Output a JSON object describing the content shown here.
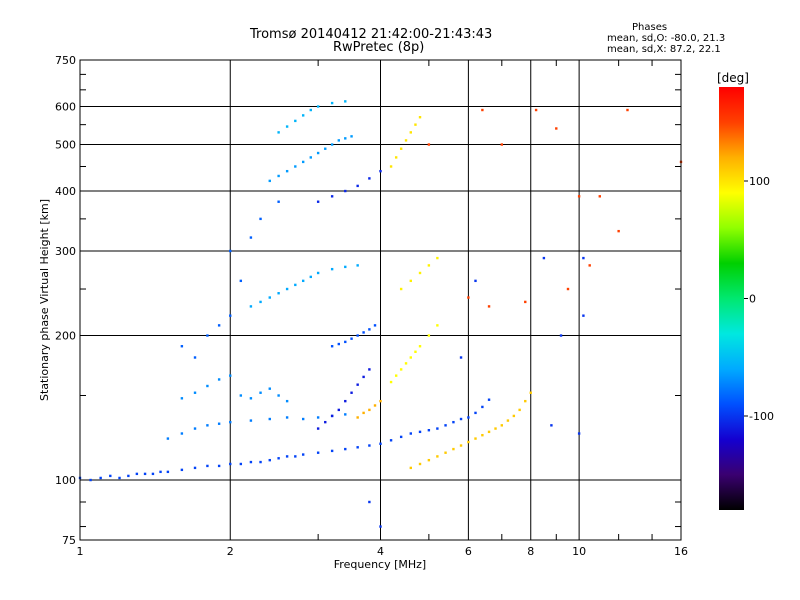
{
  "chart_data": {
    "type": "scatter",
    "title": "Tromsø 20140412 21:42:00-21:43:43",
    "subtitle": "RwPretec (8p)",
    "xlabel": "Frequency [MHz]",
    "ylabel": "Stationary phase Virtual Height [km]",
    "x_scale": "log",
    "y_scale": "log",
    "xlim": [
      1,
      16
    ],
    "ylim": [
      75,
      750
    ],
    "x_ticks": [
      1,
      2,
      4,
      6,
      8,
      10,
      16
    ],
    "x_tick_labels": [
      "1",
      "2",
      "4",
      "6",
      "8",
      "10",
      "16"
    ],
    "y_ticks": [
      75,
      100,
      200,
      300,
      400,
      500,
      600,
      750
    ],
    "y_tick_labels": [
      "75",
      "100",
      "200",
      "300",
      "400",
      "500",
      "600",
      "750"
    ],
    "grid": true,
    "colorbar": {
      "label": "[deg]",
      "range": [
        -180,
        180
      ],
      "ticks": [
        100,
        0,
        -100
      ],
      "tick_labels": [
        "100",
        "0",
        "-100"
      ],
      "colors": [
        "#000000",
        "#3a0070",
        "#1400d0",
        "#0050ff",
        "#00aaff",
        "#00e8e0",
        "#00e870",
        "#00d000",
        "#90ff00",
        "#ffff00",
        "#ffb000",
        "#ff4000",
        "#ff0000"
      ]
    },
    "phases_box": {
      "title": "Phases",
      "line_o": "mean, sd,O: -80.0, 21.3",
      "line_x": "mean, sd,X:  87.2, 22.1"
    },
    "series": [
      {
        "kind": "O-mode E layer",
        "phase": -95,
        "points": [
          [
            1.0,
            101
          ],
          [
            1.05,
            100
          ],
          [
            1.1,
            101
          ],
          [
            1.15,
            102
          ],
          [
            1.2,
            101
          ],
          [
            1.25,
            102
          ],
          [
            1.3,
            103
          ],
          [
            1.35,
            103
          ],
          [
            1.4,
            103
          ],
          [
            1.45,
            104
          ],
          [
            1.5,
            104
          ],
          [
            1.6,
            105
          ],
          [
            1.7,
            106
          ],
          [
            1.8,
            107
          ],
          [
            1.9,
            107
          ],
          [
            2.0,
            108
          ],
          [
            2.1,
            108
          ],
          [
            2.2,
            109
          ],
          [
            2.3,
            109
          ],
          [
            2.4,
            110
          ],
          [
            2.5,
            111
          ],
          [
            2.6,
            112
          ],
          [
            2.7,
            112
          ],
          [
            2.8,
            113
          ],
          [
            3.0,
            114
          ],
          [
            3.2,
            115
          ],
          [
            3.4,
            116
          ],
          [
            3.6,
            117
          ],
          [
            3.8,
            118
          ],
          [
            4.0,
            119
          ],
          [
            4.2,
            121
          ],
          [
            4.4,
            123
          ],
          [
            4.6,
            125
          ],
          [
            4.8,
            126
          ],
          [
            5.0,
            127
          ],
          [
            5.2,
            128
          ],
          [
            5.4,
            130
          ],
          [
            5.6,
            132
          ],
          [
            5.8,
            134
          ],
          [
            6.0,
            135
          ],
          [
            6.2,
            138
          ],
          [
            6.4,
            142
          ],
          [
            6.6,
            147
          ]
        ]
      },
      {
        "kind": "O-mode E layer echo",
        "phase": -75,
        "points": [
          [
            1.5,
            122
          ],
          [
            1.6,
            125
          ],
          [
            1.7,
            128
          ],
          [
            1.8,
            130
          ],
          [
            1.9,
            131
          ],
          [
            2.0,
            132
          ],
          [
            2.2,
            133
          ],
          [
            2.4,
            134
          ],
          [
            2.6,
            135
          ],
          [
            2.8,
            134
          ],
          [
            3.0,
            135
          ],
          [
            3.2,
            136
          ],
          [
            3.4,
            137
          ]
        ]
      },
      {
        "kind": "O-mode Es patch",
        "phase": -70,
        "points": [
          [
            1.6,
            148
          ],
          [
            1.7,
            152
          ],
          [
            1.8,
            157
          ],
          [
            1.9,
            162
          ],
          [
            2.0,
            165
          ],
          [
            2.1,
            150
          ],
          [
            2.2,
            148
          ],
          [
            2.3,
            152
          ],
          [
            2.4,
            155
          ],
          [
            2.5,
            150
          ],
          [
            2.6,
            146
          ]
        ]
      },
      {
        "kind": "O-mode F trace",
        "phase": -110,
        "points": [
          [
            3.0,
            128
          ],
          [
            3.1,
            132
          ],
          [
            3.2,
            136
          ],
          [
            3.3,
            140
          ],
          [
            3.4,
            146
          ],
          [
            3.5,
            152
          ],
          [
            3.6,
            158
          ],
          [
            3.7,
            164
          ],
          [
            3.8,
            170
          ]
        ]
      },
      {
        "kind": "O-mode F layer",
        "phase": -60,
        "points": [
          [
            2.2,
            230
          ],
          [
            2.3,
            235
          ],
          [
            2.4,
            240
          ],
          [
            2.5,
            245
          ],
          [
            2.6,
            250
          ],
          [
            2.7,
            255
          ],
          [
            2.8,
            260
          ],
          [
            2.9,
            265
          ],
          [
            3.0,
            270
          ],
          [
            3.2,
            275
          ],
          [
            3.4,
            278
          ],
          [
            3.6,
            280
          ]
        ]
      },
      {
        "kind": "O-mode F2 cusp",
        "phase": -90,
        "points": [
          [
            3.2,
            190
          ],
          [
            3.3,
            192
          ],
          [
            3.4,
            194
          ],
          [
            3.5,
            197
          ],
          [
            3.6,
            200
          ],
          [
            3.7,
            203
          ],
          [
            3.8,
            206
          ],
          [
            3.9,
            210
          ]
        ]
      },
      {
        "kind": "O-mode F2 layer",
        "phase": -65,
        "points": [
          [
            2.4,
            420
          ],
          [
            2.5,
            430
          ],
          [
            2.6,
            440
          ],
          [
            2.7,
            450
          ],
          [
            2.8,
            460
          ],
          [
            2.9,
            470
          ],
          [
            3.0,
            480
          ],
          [
            3.1,
            490
          ],
          [
            3.2,
            500
          ],
          [
            3.3,
            510
          ],
          [
            3.4,
            515
          ],
          [
            3.5,
            520
          ]
        ]
      },
      {
        "kind": "O-mode F2 layer high",
        "phase": -55,
        "points": [
          [
            2.5,
            530
          ],
          [
            2.6,
            545
          ],
          [
            2.7,
            560
          ],
          [
            2.8,
            575
          ],
          [
            2.9,
            590
          ],
          [
            3.0,
            600
          ],
          [
            3.2,
            610
          ],
          [
            3.4,
            615
          ]
        ]
      },
      {
        "kind": "O-mode F2 trace",
        "phase": -105,
        "points": [
          [
            3.0,
            380
          ],
          [
            3.2,
            390
          ],
          [
            3.4,
            400
          ],
          [
            3.6,
            410
          ],
          [
            3.8,
            425
          ],
          [
            4.0,
            440
          ]
        ]
      },
      {
        "kind": "X-mode E layer",
        "phase": 110,
        "points": [
          [
            4.6,
            106
          ],
          [
            4.8,
            108
          ],
          [
            5.0,
            110
          ],
          [
            5.2,
            112
          ],
          [
            5.4,
            114
          ],
          [
            5.6,
            116
          ],
          [
            5.8,
            118
          ],
          [
            6.0,
            120
          ],
          [
            6.2,
            122
          ],
          [
            6.4,
            124
          ],
          [
            6.6,
            126
          ],
          [
            6.8,
            128
          ],
          [
            7.0,
            130
          ],
          [
            7.2,
            133
          ],
          [
            7.4,
            136
          ],
          [
            7.6,
            140
          ],
          [
            7.8,
            146
          ],
          [
            8.0,
            152
          ]
        ]
      },
      {
        "kind": "X-mode Es",
        "phase": 120,
        "points": [
          [
            3.6,
            135
          ],
          [
            3.7,
            138
          ],
          [
            3.8,
            140
          ],
          [
            3.9,
            143
          ],
          [
            4.0,
            146
          ]
        ]
      },
      {
        "kind": "X-mode F layer",
        "phase": 90,
        "points": [
          [
            4.2,
            160
          ],
          [
            4.3,
            165
          ],
          [
            4.4,
            170
          ],
          [
            4.5,
            175
          ],
          [
            4.6,
            180
          ],
          [
            4.7,
            185
          ],
          [
            4.8,
            190
          ],
          [
            5.0,
            200
          ],
          [
            5.2,
            210
          ]
        ]
      },
      {
        "kind": "X-mode F2 layer",
        "phase": 100,
        "points": [
          [
            4.2,
            450
          ],
          [
            4.3,
            470
          ],
          [
            4.4,
            490
          ],
          [
            4.5,
            510
          ],
          [
            4.6,
            530
          ],
          [
            4.7,
            550
          ],
          [
            4.8,
            570
          ]
        ]
      },
      {
        "kind": "X-mode F layer upper",
        "phase": 95,
        "points": [
          [
            4.4,
            250
          ],
          [
            4.6,
            260
          ],
          [
            4.8,
            270
          ],
          [
            5.0,
            280
          ],
          [
            5.2,
            290
          ]
        ]
      },
      {
        "kind": "scattered",
        "phase": 150,
        "points": [
          [
            6.0,
            240
          ],
          [
            6.4,
            590
          ],
          [
            7.0,
            500
          ],
          [
            8.2,
            590
          ],
          [
            9.0,
            540
          ],
          [
            10.0,
            390
          ],
          [
            11.0,
            390
          ],
          [
            12.0,
            330
          ],
          [
            12.5,
            590
          ],
          [
            16.0,
            460
          ],
          [
            5.0,
            500
          ],
          [
            7.8,
            235
          ],
          [
            9.5,
            250
          ],
          [
            10.5,
            280
          ],
          [
            6.6,
            230
          ]
        ]
      },
      {
        "kind": "scattered blue",
        "phase": -100,
        "points": [
          [
            8.8,
            130
          ],
          [
            9.2,
            200
          ],
          [
            10.0,
            125
          ],
          [
            10.2,
            290
          ],
          [
            8.5,
            290
          ],
          [
            6.2,
            260
          ],
          [
            5.8,
            180
          ],
          [
            10.2,
            220
          ],
          [
            4.0,
            80
          ],
          [
            3.8,
            90
          ]
        ]
      },
      {
        "kind": "scattered O-mode high",
        "phase": -85,
        "points": [
          [
            1.8,
            200
          ],
          [
            1.9,
            210
          ],
          [
            2.0,
            220
          ],
          [
            1.7,
            180
          ],
          [
            1.6,
            190
          ],
          [
            2.1,
            260
          ],
          [
            2.0,
            300
          ],
          [
            2.2,
            320
          ],
          [
            2.3,
            350
          ],
          [
            2.5,
            380
          ]
        ]
      }
    ]
  }
}
